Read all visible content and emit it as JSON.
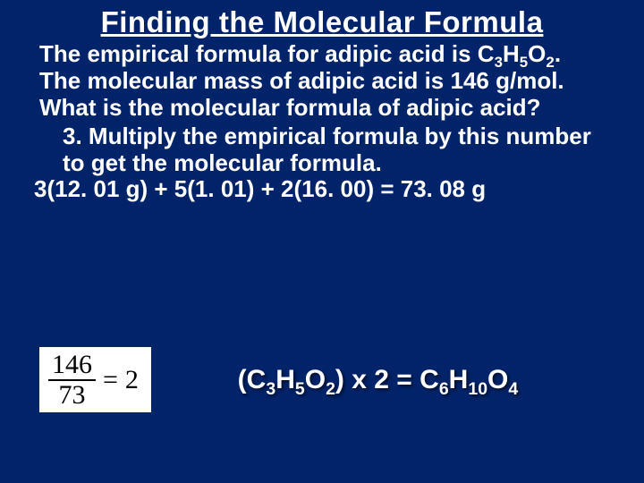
{
  "colors": {
    "background": "#002369",
    "text": "#ffffff",
    "fraction_bg": "#ffffff",
    "fraction_text": "#000000"
  },
  "typography": {
    "font_family": "Comic Sans MS",
    "title_fontsize": 33,
    "body_fontsize": 26,
    "result_fontsize": 30,
    "fraction_font_family": "Times New Roman",
    "fraction_fontsize": 30,
    "weight": "bold"
  },
  "title": "Finding the Molecular Formula",
  "problem": {
    "t1": "The empirical formula for adipic acid is C",
    "s1": "3",
    "t2": "H",
    "s2": "5",
    "t3": "O",
    "s3": "2",
    "t4": ". The molecular mass of adipic acid is 146 g/mol. What is the molecular formula of adipic acid?"
  },
  "step": "3. Multiply the empirical formula by this number to get the molecular formula.",
  "calc": "3(12. 01 g) + 5(1. 01) + 2(16. 00) = 73. 08 g",
  "fraction": {
    "numerator": "146",
    "denominator": "73",
    "eq": "=",
    "result": "2"
  },
  "result": {
    "t1": "(C",
    "s1": "3",
    "t2": "H",
    "s2": "5",
    "t3": "O",
    "s3": "2",
    "t4": ") x 2 = C",
    "s4": "6",
    "t5": "H",
    "s5": "10",
    "t6": "O",
    "s6": "4"
  }
}
